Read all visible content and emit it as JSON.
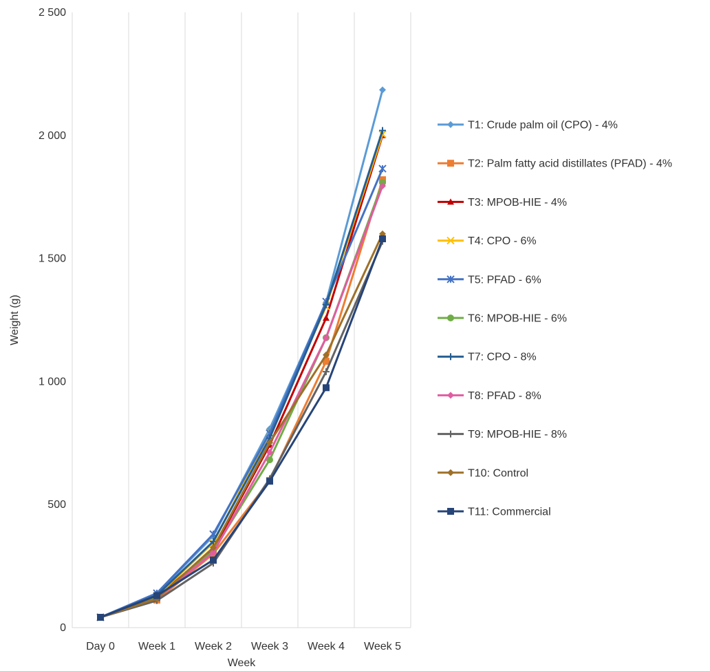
{
  "chart_data": {
    "type": "line",
    "title": "",
    "xlabel": "Week",
    "ylabel": "Weight (g)",
    "categories": [
      "Day 0",
      "Week 1",
      "Week 2",
      "Week 3",
      "Week 4",
      "Week 5"
    ],
    "ylim": [
      0,
      2500
    ],
    "yticks": [
      0,
      500,
      1000,
      1500,
      2000,
      2500
    ],
    "ytick_labels": [
      "0",
      "500",
      "1 000",
      "1 500",
      "2 000",
      "2 500"
    ],
    "grid": "vertical",
    "legend": "right",
    "series": [
      {
        "name": "T1: Crude palm oil (CPO) - 4%",
        "color": "#5b9bd5",
        "marker": "diamond",
        "values": [
          42,
          138,
          372,
          808,
          1322,
          2185
        ]
      },
      {
        "name": "T2: Palm fatty acid distillates (PFAD) - 4%",
        "color": "#ed7d31",
        "marker": "square",
        "values": [
          42,
          112,
          300,
          598,
          1082,
          1820
        ]
      },
      {
        "name": "T3: MPOB-HIE - 4%",
        "color": "#c00000",
        "marker": "triangle",
        "values": [
          42,
          125,
          318,
          742,
          1258,
          2000
        ]
      },
      {
        "name": "T4: CPO - 6%",
        "color": "#ffc000",
        "marker": "x",
        "values": [
          42,
          128,
          345,
          792,
          1305,
          2005
        ]
      },
      {
        "name": "T5: PFAD - 6%",
        "color": "#4472c4",
        "marker": "asterisk",
        "values": [
          42,
          140,
          380,
          790,
          1325,
          1865
        ]
      },
      {
        "name": "T6: MPOB-HIE - 6%",
        "color": "#70ad47",
        "marker": "circle",
        "values": [
          42,
          122,
          312,
          682,
          1178,
          1808
        ]
      },
      {
        "name": "T7: CPO - 8%",
        "color": "#255e91",
        "marker": "plus",
        "values": [
          42,
          132,
          350,
          770,
          1312,
          2020
        ]
      },
      {
        "name": "T8: PFAD - 8%",
        "color": "#e15ca2",
        "marker": "diamond",
        "values": [
          42,
          118,
          305,
          712,
          1178,
          1795
        ]
      },
      {
        "name": "T9: MPOB-HIE - 8%",
        "color": "#636363",
        "marker": "plus",
        "values": [
          42,
          110,
          262,
          605,
          1040,
          1570
        ]
      },
      {
        "name": "T10: Control",
        "color": "#9e7028",
        "marker": "diamond",
        "values": [
          42,
          118,
          325,
          752,
          1108,
          1600
        ]
      },
      {
        "name": "T11: Commercial",
        "color": "#264478",
        "marker": "square",
        "values": [
          42,
          130,
          275,
          595,
          975,
          1580
        ]
      }
    ]
  }
}
